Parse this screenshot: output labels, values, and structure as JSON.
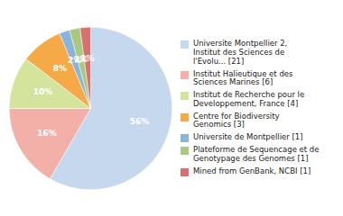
{
  "chart_data": {
    "type": "pie",
    "categories": [
      "Universite Montpellier 2,\nInstitut des Sciences de\nl'Evolu... [21]",
      "Institut Halieutique et des\nSciences Marines [6]",
      "Institut de Recherche pour le\nDeveloppement, France [4]",
      "Centre for Biodiversity\nGenomics [3]",
      "Universite de Montpellier [1]",
      "Plateforme de Sequencage et de\nGenotypage des Genomes [1]",
      "Mined from GenBank, NCBI [1]"
    ],
    "values": [
      56,
      16,
      10,
      8,
      2,
      2,
      2
    ],
    "value_labels": [
      "56%",
      "16%",
      "10%",
      "8%",
      "2%",
      "2%",
      "2%"
    ],
    "colors": [
      "#c5d8ed",
      "#f2b0a9",
      "#d5e49d",
      "#f5a947",
      "#8ab4d9",
      "#a8c97f",
      "#d97070"
    ],
    "data_labels": true,
    "legend": "right"
  }
}
